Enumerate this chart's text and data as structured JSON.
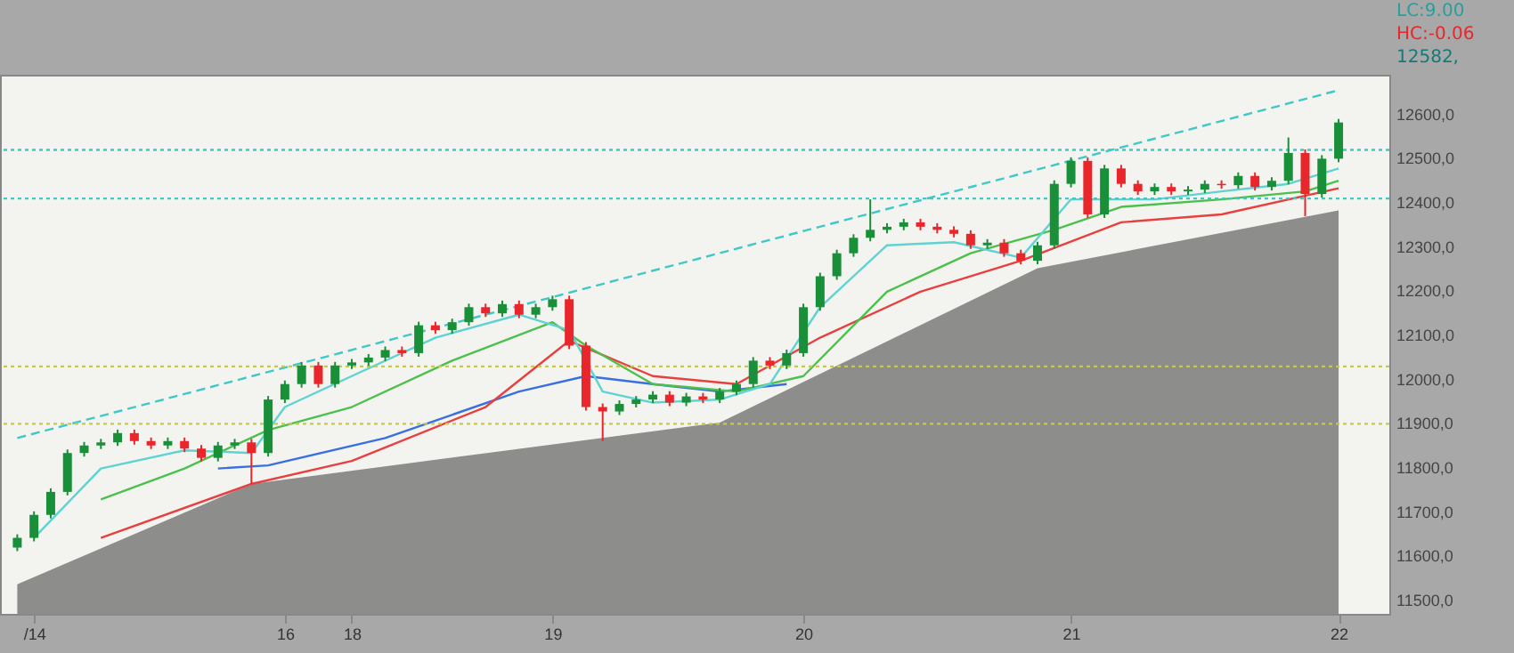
{
  "chart_data": {
    "type": "candlestick",
    "grid": false,
    "categories": [
      null,
      "/14",
      null,
      null,
      null,
      null,
      null,
      null,
      null,
      null,
      null,
      null,
      null,
      null,
      null,
      null,
      "16",
      null,
      null,
      null,
      "18",
      null,
      null,
      null,
      null,
      null,
      null,
      null,
      null,
      null,
      null,
      null,
      "19",
      null,
      null,
      null,
      null,
      null,
      null,
      null,
      null,
      null,
      null,
      null,
      null,
      null,
      null,
      "20",
      null,
      null,
      null,
      null,
      null,
      null,
      null,
      null,
      null,
      null,
      null,
      null,
      null,
      null,
      null,
      "21",
      null,
      null,
      null,
      null,
      null,
      null,
      null,
      null,
      null,
      null,
      null,
      null,
      null,
      null,
      null,
      "22"
    ],
    "colors": [
      "#1a8f3a",
      "#1a8f3a",
      "#1a8f3a",
      "#1a8f3a",
      "#1a8f3a",
      "#1a8f3a",
      "#1a8f3a",
      "#e8262b",
      "#e8262b",
      "#1a8f3a",
      "#e8262b",
      "#e8262b",
      "#1a8f3a",
      "#1a8f3a",
      "#e8262b",
      "#1a8f3a",
      "#1a8f3a",
      "#1a8f3a",
      "#e8262b",
      "#1a8f3a",
      "#1a8f3a",
      "#1a8f3a",
      "#1a8f3a",
      "#e8262b",
      "#1a8f3a",
      "#e8262b",
      "#1a8f3a",
      "#1a8f3a",
      "#e8262b",
      "#1a8f3a",
      "#e8262b",
      "#1a8f3a",
      "#1a8f3a",
      "#e8262b",
      "#e8262b",
      "#e8262b",
      "#1a8f3a",
      "#1a8f3a",
      "#1a8f3a",
      "#e8262b",
      "#1a8f3a",
      "#e8262b",
      "#1a8f3a",
      "#1a8f3a",
      "#1a8f3a",
      "#e8262b",
      "#1a8f3a",
      "#1a8f3a",
      "#1a8f3a",
      "#1a8f3a",
      "#1a8f3a",
      "#1a8f3a",
      "#1a8f3a",
      "#1a8f3a",
      "#e8262b",
      "#e8262b",
      "#e8262b",
      "#e8262b",
      "#1a8f3a",
      "#e8262b",
      "#e8262b",
      "#1a8f3a",
      "#1a8f3a",
      "#1a8f3a",
      "#e8262b",
      "#1a8f3a",
      "#e8262b",
      "#e8262b",
      "#1a8f3a",
      "#e8262b",
      "#1a8f3a",
      "#1a8f3a",
      "#e8262b",
      "#1a8f3a",
      "#e8262b",
      "#1a8f3a",
      "#1a8f3a",
      "#e8262b",
      "#1a8f3a",
      "#1a8f3a"
    ],
    "ohlc": [
      [
        11620,
        11650,
        11612,
        11642
      ],
      [
        11642,
        11702,
        11634,
        11694
      ],
      [
        11694,
        11754,
        11686,
        11746
      ],
      [
        11746,
        11842,
        11738,
        11834
      ],
      [
        11834,
        11859,
        11826,
        11851
      ],
      [
        11851,
        11866,
        11843,
        11858
      ],
      [
        11858,
        11887,
        11850,
        11879
      ],
      [
        11879,
        11887,
        11853,
        11861
      ],
      [
        11861,
        11869,
        11843,
        11851
      ],
      [
        11851,
        11869,
        11843,
        11861
      ],
      [
        11861,
        11869,
        11836,
        11844
      ],
      [
        11844,
        11852,
        11815,
        11823
      ],
      [
        11823,
        11859,
        11815,
        11851
      ],
      [
        11851,
        11866,
        11843,
        11858
      ],
      [
        11858,
        11866,
        11764,
        11834
      ],
      [
        11834,
        11963,
        11826,
        11955
      ],
      [
        11955,
        11998,
        11947,
        11990
      ],
      [
        11990,
        12040,
        11982,
        12032
      ],
      [
        12032,
        12040,
        11982,
        11990
      ],
      [
        11990,
        12040,
        11982,
        12032
      ],
      [
        12032,
        12047,
        12024,
        12039
      ],
      [
        12039,
        12058,
        12031,
        12050
      ],
      [
        12050,
        12075,
        12042,
        12067
      ],
      [
        12067,
        12075,
        12052,
        12060
      ],
      [
        12060,
        12131,
        12052,
        12123
      ],
      [
        12123,
        12131,
        12104,
        12112
      ],
      [
        12112,
        12138,
        12104,
        12130
      ],
      [
        12130,
        12172,
        12122,
        12164
      ],
      [
        12164,
        12172,
        12142,
        12150
      ],
      [
        12150,
        12179,
        12142,
        12171
      ],
      [
        12171,
        12179,
        12139,
        12147
      ],
      [
        12147,
        12172,
        12139,
        12164
      ],
      [
        12164,
        12190,
        12156,
        12182
      ],
      [
        12182,
        12190,
        12069,
        12077
      ],
      [
        12077,
        12085,
        11930,
        11938
      ],
      [
        11938,
        11946,
        11861,
        11928
      ],
      [
        11928,
        11953,
        11920,
        11945
      ],
      [
        11945,
        11963,
        11937,
        11955
      ],
      [
        11955,
        11974,
        11947,
        11966
      ],
      [
        11966,
        11974,
        11940,
        11948
      ],
      [
        11948,
        11970,
        11940,
        11962
      ],
      [
        11962,
        11970,
        11947,
        11955
      ],
      [
        11955,
        11981,
        11947,
        11973
      ],
      [
        11973,
        11998,
        11965,
        11990
      ],
      [
        11990,
        12051,
        11982,
        12043
      ],
      [
        12043,
        12051,
        12024,
        12032
      ],
      [
        12032,
        12068,
        12024,
        12060
      ],
      [
        12060,
        12172,
        12052,
        12164
      ],
      [
        12164,
        12242,
        12156,
        12234
      ],
      [
        12234,
        12294,
        12226,
        12286
      ],
      [
        12286,
        12329,
        12278,
        12321
      ],
      [
        12321,
        12408,
        12313,
        12339
      ],
      [
        12339,
        12354,
        12331,
        12346
      ],
      [
        12346,
        12364,
        12338,
        12356
      ],
      [
        12356,
        12364,
        12338,
        12346
      ],
      [
        12346,
        12354,
        12331,
        12339
      ],
      [
        12339,
        12347,
        12322,
        12330
      ],
      [
        12330,
        12338,
        12296,
        12304
      ],
      [
        12304,
        12318,
        12296,
        12310
      ],
      [
        12310,
        12318,
        12278,
        12286
      ],
      [
        12286,
        12294,
        12261,
        12269
      ],
      [
        12269,
        12312,
        12261,
        12304
      ],
      [
        12304,
        12451,
        12296,
        12443
      ],
      [
        12443,
        12503,
        12435,
        12495
      ],
      [
        12495,
        12503,
        12366,
        12374
      ],
      [
        12374,
        12486,
        12366,
        12478
      ],
      [
        12478,
        12486,
        12435,
        12443
      ],
      [
        12443,
        12451,
        12418,
        12426
      ],
      [
        12426,
        12444,
        12418,
        12436
      ],
      [
        12436,
        12444,
        12418,
        12426
      ],
      [
        12426,
        12438,
        12418,
        12430
      ],
      [
        12430,
        12451,
        12422,
        12443
      ],
      [
        12443,
        12451,
        12432,
        12440
      ],
      [
        12440,
        12469,
        12432,
        12461
      ],
      [
        12461,
        12469,
        12428,
        12436
      ],
      [
        12436,
        12458,
        12428,
        12450
      ],
      [
        12450,
        12548,
        12442,
        12513
      ],
      [
        12513,
        12521,
        12370,
        12420
      ],
      [
        12420,
        12508,
        12412,
        12500
      ],
      [
        12500,
        12590,
        12492,
        12582
      ]
    ],
    "series": [
      {
        "type": "area",
        "color": "#7a7a7a",
        "values": [
          11537,
          null,
          null,
          null,
          null,
          null,
          null,
          null,
          null,
          null,
          null,
          null,
          null,
          null,
          11764,
          null,
          null,
          null,
          null,
          null,
          null,
          null,
          null,
          null,
          null,
          null,
          null,
          null,
          null,
          null,
          null,
          null,
          null,
          null,
          null,
          null,
          null,
          null,
          null,
          null,
          null,
          null,
          11903,
          null,
          null,
          null,
          null,
          null,
          null,
          null,
          null,
          null,
          null,
          null,
          null,
          null,
          null,
          null,
          null,
          null,
          null,
          12252,
          null,
          null,
          null,
          null,
          null,
          null,
          null,
          null,
          null,
          null,
          null,
          null,
          null,
          null,
          null,
          null,
          null,
          12383
        ]
      },
      {
        "type": "line",
        "color": "#40c8c8",
        "line_style": "dashed",
        "values": [
          11868,
          null,
          null,
          null,
          null,
          null,
          null,
          null,
          null,
          null,
          null,
          null,
          null,
          null,
          null,
          null,
          null,
          null,
          null,
          null,
          null,
          null,
          null,
          null,
          null,
          null,
          null,
          null,
          null,
          null,
          null,
          null,
          null,
          null,
          null,
          null,
          null,
          null,
          null,
          null,
          null,
          null,
          null,
          null,
          null,
          null,
          null,
          null,
          null,
          null,
          null,
          null,
          null,
          null,
          null,
          null,
          null,
          null,
          null,
          null,
          null,
          null,
          null,
          null,
          null,
          null,
          null,
          null,
          null,
          null,
          null,
          null,
          null,
          null,
          null,
          null,
          null,
          null,
          null,
          12655
        ]
      },
      {
        "type": "line",
        "color": "#3a6fe0",
        "values": [
          null,
          null,
          null,
          null,
          null,
          null,
          null,
          null,
          null,
          null,
          null,
          null,
          11799,
          null,
          null,
          11806,
          null,
          null,
          null,
          null,
          null,
          null,
          11868,
          null,
          null,
          null,
          null,
          null,
          null,
          null,
          11973,
          null,
          null,
          null,
          12008,
          null,
          null,
          null,
          11990,
          null,
          null,
          null,
          11973,
          null,
          null,
          null,
          11990,
          null,
          null,
          null,
          null,
          null,
          null,
          null,
          null,
          null,
          null,
          null,
          null,
          null,
          null,
          null,
          null,
          null,
          null,
          null,
          null,
          null,
          null,
          null,
          null,
          null,
          null,
          null,
          null,
          null,
          null,
          null,
          null,
          null
        ]
      },
      {
        "type": "line",
        "color": "#e84040",
        "values": [
          null,
          null,
          null,
          null,
          null,
          11642,
          null,
          null,
          null,
          null,
          null,
          null,
          null,
          null,
          11764,
          null,
          null,
          null,
          null,
          null,
          11816,
          null,
          null,
          null,
          null,
          null,
          null,
          null,
          11938,
          null,
          null,
          null,
          null,
          12088,
          null,
          null,
          null,
          null,
          12008,
          null,
          null,
          null,
          null,
          11990,
          null,
          null,
          null,
          null,
          12095,
          null,
          null,
          null,
          null,
          null,
          12199,
          null,
          null,
          null,
          null,
          null,
          12269,
          null,
          null,
          null,
          null,
          null,
          12356,
          null,
          null,
          null,
          null,
          null,
          12374,
          null,
          null,
          null,
          null,
          null,
          null,
          12433
        ]
      },
      {
        "type": "line",
        "color": "#4cc04c",
        "values": [
          null,
          null,
          null,
          null,
          null,
          11729,
          null,
          null,
          null,
          null,
          11799,
          null,
          null,
          null,
          null,
          11886,
          null,
          null,
          null,
          null,
          11938,
          null,
          null,
          null,
          null,
          null,
          12043,
          null,
          null,
          null,
          null,
          null,
          12130,
          null,
          12077,
          null,
          null,
          null,
          11990,
          null,
          null,
          null,
          null,
          11973,
          null,
          null,
          null,
          12008,
          null,
          null,
          null,
          null,
          12199,
          null,
          null,
          null,
          null,
          12286,
          null,
          null,
          null,
          null,
          12339,
          null,
          null,
          null,
          12391,
          null,
          null,
          null,
          null,
          null,
          12408,
          null,
          null,
          null,
          null,
          12426,
          null,
          12450
        ]
      },
      {
        "type": "line",
        "color": "#5fd3d3",
        "values": [
          null,
          11642,
          null,
          null,
          null,
          11799,
          null,
          null,
          null,
          null,
          11840,
          null,
          null,
          null,
          11834,
          null,
          11938,
          null,
          null,
          null,
          12008,
          null,
          null,
          null,
          null,
          12095,
          null,
          null,
          null,
          null,
          12147,
          null,
          null,
          12112,
          null,
          11973,
          null,
          null,
          11948,
          null,
          null,
          null,
          11955,
          null,
          null,
          11990,
          null,
          null,
          12164,
          null,
          null,
          null,
          12304,
          null,
          null,
          null,
          12311,
          null,
          null,
          null,
          12276,
          null,
          null,
          12408,
          null,
          null,
          null,
          null,
          12408,
          null,
          null,
          null,
          12426,
          null,
          null,
          null,
          12443,
          null,
          null,
          12478
        ]
      }
    ],
    "ref_lines": [
      {
        "axis": "y",
        "value": 11900,
        "color": "#c8c84a",
        "line_style": "dotted"
      },
      {
        "axis": "y",
        "value": 12030,
        "color": "#c8c84a",
        "line_style": "dotted"
      },
      {
        "axis": "y",
        "value": 12410,
        "color": "#40c8c8",
        "line_style": "dotted"
      },
      {
        "axis": "y",
        "value": 12520,
        "color": "#40c8c8",
        "line_style": "dotted"
      }
    ],
    "annotations": [
      "LC:9.00",
      "HC:-0.06",
      "12582,"
    ],
    "ylim": [
      11470,
      12690
    ],
    "yticks": [
      {
        "value": 11500,
        "label": "11500,0"
      },
      {
        "value": 11600,
        "label": "11600,0"
      },
      {
        "value": 11700,
        "label": "11700,0"
      },
      {
        "value": 11800,
        "label": "11800,0"
      },
      {
        "value": 11900,
        "label": "11900,0"
      },
      {
        "value": 12000,
        "label": "12000,0"
      },
      {
        "value": 12100,
        "label": "12100,0"
      },
      {
        "value": 12200,
        "label": "12200,0"
      },
      {
        "value": 12300,
        "label": "12300,0"
      },
      {
        "value": 12400,
        "label": "12400,0"
      },
      {
        "value": 12500,
        "label": "12500,0"
      },
      {
        "value": 12600,
        "label": "12600,0"
      }
    ]
  }
}
